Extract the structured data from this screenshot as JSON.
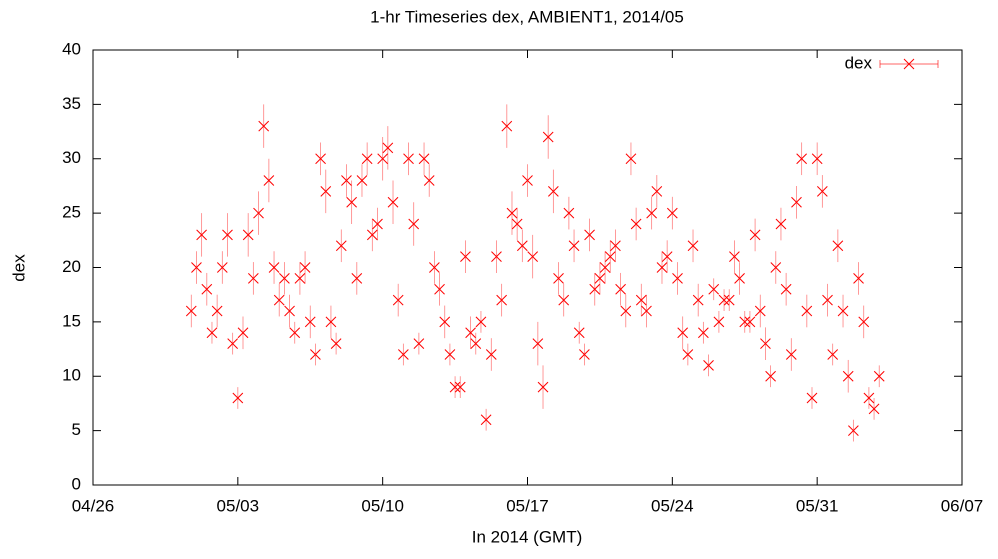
{
  "chart_data": {
    "type": "scatter",
    "title": "1-hr Timeseries dex, AMBIENT1, 2014/05",
    "x_label": "In 2014 (GMT)",
    "y_label": "dex",
    "legend": "top-right",
    "xlim": [
      "04/26",
      "06/07"
    ],
    "xticks": [
      "04/26",
      "05/03",
      "05/10",
      "05/17",
      "05/24",
      "05/31",
      "06/07"
    ],
    "ylim": [
      0,
      40
    ],
    "yticks": [
      0,
      5,
      10,
      15,
      20,
      25,
      30,
      35,
      40
    ],
    "series": [
      {
        "name": "dex",
        "color": "#ff0000",
        "x": [
          "04/30 18:00",
          "05/01 00:00",
          "05/01 06:00",
          "05/01 12:00",
          "05/01 18:00",
          "05/02 00:00",
          "05/02 06:00",
          "05/02 12:00",
          "05/02 18:00",
          "05/03 00:00",
          "05/03 06:00",
          "05/03 12:00",
          "05/03 18:00",
          "05/04 00:00",
          "05/04 06:00",
          "05/04 12:00",
          "05/04 18:00",
          "05/05 00:00",
          "05/05 06:00",
          "05/05 12:00",
          "05/05 18:00",
          "05/06 00:00",
          "05/06 06:00",
          "05/06 12:00",
          "05/06 18:00",
          "05/07 00:00",
          "05/07 06:00",
          "05/07 12:00",
          "05/07 18:00",
          "05/08 00:00",
          "05/08 06:00",
          "05/08 12:00",
          "05/08 18:00",
          "05/09 00:00",
          "05/09 06:00",
          "05/09 12:00",
          "05/09 18:00",
          "05/10 00:00",
          "05/10 06:00",
          "05/10 12:00",
          "05/10 18:00",
          "05/11 00:00",
          "05/11 06:00",
          "05/11 12:00",
          "05/11 18:00",
          "05/12 00:00",
          "05/12 06:00",
          "05/12 12:00",
          "05/12 18:00",
          "05/13 00:00",
          "05/13 06:00",
          "05/13 12:00",
          "05/13 18:00",
          "05/14 00:00",
          "05/14 06:00",
          "05/14 12:00",
          "05/14 18:00",
          "05/15 00:00",
          "05/15 06:00",
          "05/15 12:00",
          "05/15 18:00",
          "05/16 00:00",
          "05/16 06:00",
          "05/16 12:00",
          "05/16 18:00",
          "05/17 00:00",
          "05/17 06:00",
          "05/17 12:00",
          "05/17 18:00",
          "05/18 00:00",
          "05/18 06:00",
          "05/18 12:00",
          "05/18 18:00",
          "05/19 00:00",
          "05/19 06:00",
          "05/19 12:00",
          "05/19 18:00",
          "05/20 00:00",
          "05/20 06:00",
          "05/20 12:00",
          "05/20 18:00",
          "05/21 00:00",
          "05/21 06:00",
          "05/21 12:00",
          "05/21 18:00",
          "05/22 00:00",
          "05/22 06:00",
          "05/22 12:00",
          "05/22 18:00",
          "05/23 00:00",
          "05/23 06:00",
          "05/23 12:00",
          "05/23 18:00",
          "05/24 00:00",
          "05/24 06:00",
          "05/24 12:00",
          "05/24 18:00",
          "05/25 00:00",
          "05/25 06:00",
          "05/25 12:00",
          "05/25 18:00",
          "05/26 00:00",
          "05/26 06:00",
          "05/26 12:00",
          "05/26 18:00",
          "05/27 00:00",
          "05/27 06:00",
          "05/27 12:00",
          "05/27 18:00",
          "05/28 00:00",
          "05/28 06:00",
          "05/28 12:00",
          "05/28 18:00",
          "05/29 00:00",
          "05/29 06:00",
          "05/29 12:00",
          "05/29 18:00",
          "05/30 00:00",
          "05/30 06:00",
          "05/30 12:00",
          "05/30 18:00",
          "05/31 00:00",
          "05/31 06:00",
          "05/31 12:00",
          "05/31 18:00",
          "06/01 00:00",
          "06/01 06:00",
          "06/01 12:00",
          "06/01 18:00",
          "06/02 00:00",
          "06/02 06:00",
          "06/02 12:00",
          "06/02 18:00",
          "06/03 00:00"
        ],
        "values": [
          16,
          20,
          23,
          18,
          14,
          16,
          20,
          23,
          13,
          8,
          14,
          23,
          19,
          25,
          33,
          28,
          20,
          17,
          19,
          16,
          14,
          19,
          20,
          15,
          12,
          30,
          27,
          15,
          13,
          22,
          28,
          26,
          19,
          28,
          30,
          23,
          24,
          30,
          31,
          26,
          17,
          12,
          30,
          24,
          13,
          30,
          28,
          20,
          18,
          15,
          12,
          9,
          9,
          21,
          14,
          13,
          15,
          6,
          12,
          21,
          17,
          33,
          25,
          24,
          22,
          28,
          21,
          13,
          9,
          32,
          27,
          19,
          17,
          25,
          22,
          14,
          12,
          23,
          18,
          19,
          20,
          21,
          22,
          18,
          16,
          30,
          24,
          17,
          16,
          25,
          27,
          20,
          21,
          25,
          19,
          14,
          12,
          22,
          17,
          14,
          11,
          18,
          15,
          17,
          17,
          21,
          19,
          15,
          15,
          23,
          16,
          13,
          10,
          20,
          24,
          18,
          12,
          26,
          30,
          16,
          8,
          30,
          27,
          17,
          12,
          22,
          16,
          10,
          5,
          19,
          15,
          8,
          7,
          10
        ],
        "errors": [
          1.5,
          1.5,
          2,
          1.5,
          1,
          1.5,
          1.5,
          2,
          1,
          1,
          1.5,
          2,
          1.5,
          2,
          2,
          2,
          1.5,
          1.5,
          1.5,
          1.5,
          1,
          1.5,
          1.5,
          1.5,
          1,
          1.5,
          2,
          1.5,
          1,
          1.5,
          1.5,
          2,
          1.5,
          1.5,
          1.5,
          1.5,
          1.5,
          2,
          2,
          2,
          1.5,
          1,
          1.5,
          2,
          1,
          1.5,
          1.5,
          1.5,
          1.5,
          1.5,
          1,
          1,
          1,
          1.5,
          1.5,
          1,
          1,
          1,
          1.5,
          1.5,
          1.5,
          2,
          2,
          1.5,
          1.5,
          1.5,
          2,
          2,
          2,
          2,
          2,
          1.5,
          1.5,
          1.5,
          1.5,
          1,
          1,
          1.5,
          1.5,
          1.5,
          1.5,
          1.5,
          1.5,
          1.5,
          1.5,
          1.5,
          1.5,
          1.5,
          1.5,
          1.5,
          1.5,
          1.5,
          1.5,
          1.5,
          1.5,
          1.5,
          1,
          1.5,
          1.5,
          1,
          1,
          1,
          1,
          1,
          1,
          1.5,
          1.5,
          1,
          1,
          1.5,
          1.5,
          1.5,
          1,
          1.5,
          1.5,
          1.5,
          1.5,
          1.5,
          1.5,
          1.5,
          1,
          1.5,
          1.5,
          1.5,
          1,
          1.5,
          1.5,
          1.5,
          1,
          1.5,
          1.5,
          1,
          1,
          1
        ]
      }
    ]
  }
}
